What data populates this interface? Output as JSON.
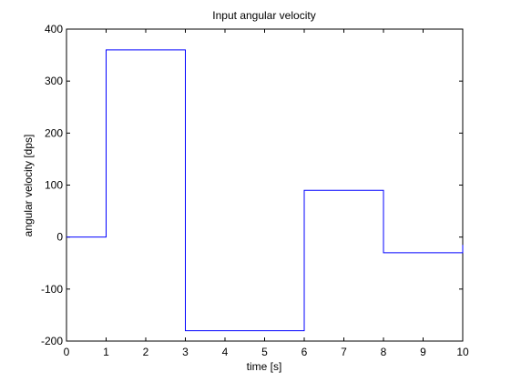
{
  "chart_data": {
    "type": "line",
    "title": "Input angular velocity",
    "xlabel": "time [s]",
    "ylabel": "angular velocity [dps]",
    "xlim": [
      0,
      10
    ],
    "ylim": [
      -200,
      400
    ],
    "xticks": [
      0,
      1,
      2,
      3,
      4,
      5,
      6,
      7,
      8,
      9,
      10
    ],
    "yticks": [
      -200,
      -100,
      0,
      100,
      200,
      300,
      400
    ],
    "grid": false,
    "colors": {
      "line": "#0000ff",
      "axes": "#000000",
      "background": "#ffffff"
    },
    "series": [
      {
        "x": [
          0,
          1,
          1,
          3,
          3,
          6,
          6,
          8,
          8,
          10,
          10
        ],
        "y": [
          0,
          0,
          360,
          360,
          -180,
          -180,
          90,
          90,
          -30,
          -30,
          -15
        ]
      }
    ]
  }
}
